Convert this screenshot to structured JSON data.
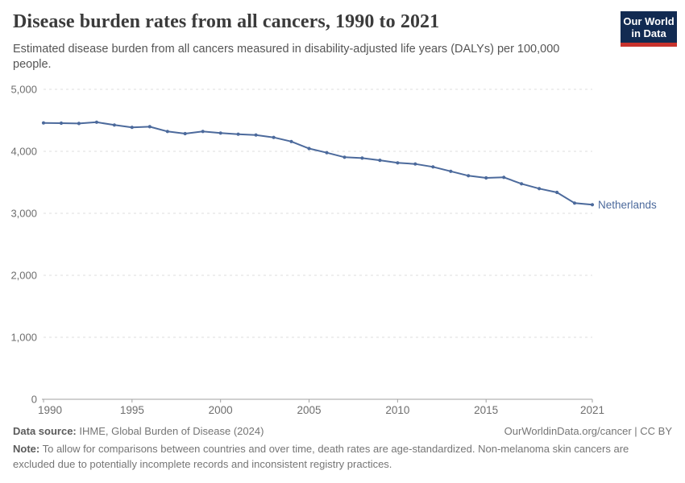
{
  "header": {
    "title": "Disease burden rates from all cancers, 1990 to 2021",
    "subtitle": "Estimated disease burden from all cancers measured in disability-adjusted life years (DALYs) per 100,000 people.",
    "logo": {
      "line1": "Our World",
      "line2": "in Data"
    }
  },
  "chart_data": {
    "type": "line",
    "title": "Disease burden rates from all cancers, 1990 to 2021",
    "xlabel": "",
    "ylabel": "DALYs per 100,000 people",
    "xlim": [
      1990,
      2021
    ],
    "ylim": [
      0,
      5000
    ],
    "grid": "horizontal-dashed",
    "legend_position": "line-end-label",
    "x_ticks": [
      {
        "v": 1990,
        "label": "1990"
      },
      {
        "v": 1995,
        "label": "1995"
      },
      {
        "v": 2000,
        "label": "2000"
      },
      {
        "v": 2005,
        "label": "2005"
      },
      {
        "v": 2010,
        "label": "2010"
      },
      {
        "v": 2015,
        "label": "2015"
      },
      {
        "v": 2021,
        "label": "2021"
      }
    ],
    "y_ticks": [
      {
        "v": 0,
        "label": "0"
      },
      {
        "v": 1000,
        "label": "1,000"
      },
      {
        "v": 2000,
        "label": "2,000"
      },
      {
        "v": 3000,
        "label": "3,000"
      },
      {
        "v": 4000,
        "label": "4,000"
      },
      {
        "v": 5000,
        "label": "5,000"
      }
    ],
    "series": [
      {
        "name": "Netherlands",
        "color": "#4c6a9c",
        "x": [
          1990,
          1991,
          1992,
          1993,
          1994,
          1995,
          1996,
          1997,
          1998,
          1999,
          2000,
          2001,
          2002,
          2003,
          2004,
          2005,
          2006,
          2007,
          2008,
          2009,
          2010,
          2011,
          2012,
          2013,
          2014,
          2015,
          2016,
          2017,
          2018,
          2019,
          2020,
          2021
        ],
        "values": [
          4458,
          4455,
          4450,
          4470,
          4425,
          4387,
          4398,
          4321,
          4286,
          4321,
          4295,
          4277,
          4264,
          4225,
          4158,
          4045,
          3978,
          3905,
          3891,
          3856,
          3814,
          3796,
          3749,
          3678,
          3606,
          3571,
          3580,
          3476,
          3399,
          3338,
          3165,
          3139
        ]
      }
    ]
  },
  "colors": {
    "accent_line": "#4c6a9c",
    "grid": "#dcdcdc",
    "axis": "#a1a1a1",
    "tick_text": "#6e6e6e",
    "logo_bg": "#122b52",
    "logo_stripe": "#c8332d"
  },
  "footer": {
    "data_source_label": "Data source:",
    "data_source_text": " IHME, Global Burden of Disease (2024)",
    "link_text": "OurWorldinData.org/cancer | CC BY",
    "note_label": "Note:",
    "note_text": " To allow for comparisons between countries and over time, death rates are age-standardized. Non-melanoma skin cancers are excluded due to potentially incomplete records and inconsistent registry practices."
  }
}
